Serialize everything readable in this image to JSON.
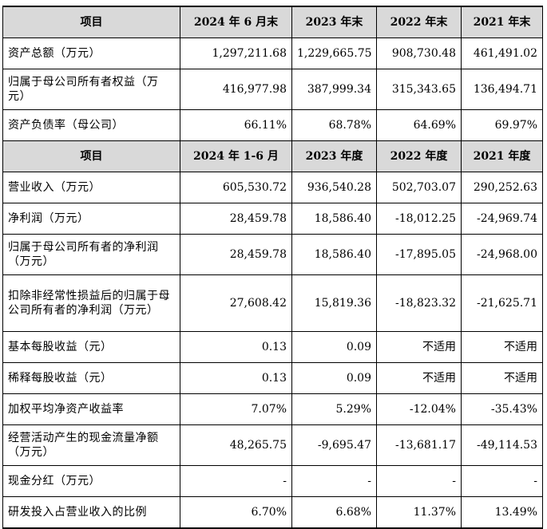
{
  "section1": {
    "headers": [
      "项目",
      "2024 年 6 月末",
      "2023 年末",
      "2022 年末",
      "2021 年末"
    ],
    "rows": [
      {
        "label": "资产总额（万元）",
        "values": [
          "1,297,211.68",
          "1,229,665.75",
          "908,730.48",
          "461,491.02"
        ]
      },
      {
        "label": "归属于母公司所有者权益（万元）",
        "values": [
          "416,977.98",
          "387,999.34",
          "315,343.65",
          "136,494.71"
        ]
      },
      {
        "label": "资产负债率（母公司）",
        "values": [
          "66.11%",
          "68.78%",
          "64.69%",
          "69.97%"
        ]
      }
    ]
  },
  "section2": {
    "headers": [
      "项目",
      "2024 年 1-6 月",
      "2023 年度",
      "2022 年度",
      "2021 年度"
    ],
    "rows": [
      {
        "label": "营业收入（万元）",
        "values": [
          "605,530.72",
          "936,540.28",
          "502,703.07",
          "290,252.63"
        ]
      },
      {
        "label": "净利润（万元）",
        "values": [
          "28,459.78",
          "18,586.40",
          "-18,012.25",
          "-24,969.74"
        ]
      },
      {
        "label": "归属于母公司所有者的净利润（万元）",
        "values": [
          "28,459.78",
          "18,586.40",
          "-17,895.05",
          "-24,968.00"
        ]
      },
      {
        "label": "扣除非经常性损益后的归属于母公司所有者的净利润（万元）",
        "values": [
          "27,608.42",
          "15,819.36",
          "-18,823.32",
          "-21,625.71"
        ]
      },
      {
        "label": "基本每股收益（元）",
        "values": [
          "0.13",
          "0.09",
          "不适用",
          "不适用"
        ]
      },
      {
        "label": "稀释每股收益（元）",
        "values": [
          "0.13",
          "0.09",
          "不适用",
          "不适用"
        ]
      },
      {
        "label": "加权平均净资产收益率",
        "values": [
          "7.07%",
          "5.29%",
          "-12.04%",
          "-35.43%"
        ]
      },
      {
        "label": "经营活动产生的现金流量净额（万元）",
        "values": [
          "48,265.75",
          "-9,695.47",
          "-13,681.17",
          "-49,114.53"
        ]
      },
      {
        "label": "现金分红（万元）",
        "values": [
          "-",
          "-",
          "-",
          "-"
        ]
      },
      {
        "label": "研发投入占营业收入的比例",
        "values": [
          "6.70%",
          "6.68%",
          "11.37%",
          "13.49%"
        ]
      }
    ]
  }
}
